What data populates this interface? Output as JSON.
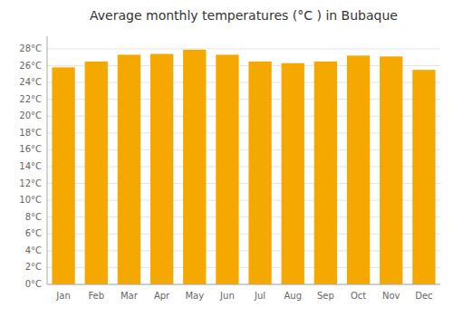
{
  "chart_data": {
    "type": "bar",
    "title": "Average monthly temperatures (°C ) in Bubaque",
    "categories": [
      "Jan",
      "Feb",
      "Mar",
      "Apr",
      "May",
      "Jun",
      "Jul",
      "Aug",
      "Sep",
      "Oct",
      "Nov",
      "Dec"
    ],
    "values": [
      25.8,
      26.5,
      27.3,
      27.4,
      27.9,
      27.3,
      26.5,
      26.3,
      26.5,
      27.2,
      27.1,
      25.5
    ],
    "color": "#F5A800",
    "ylim": [
      0,
      29.5
    ],
    "yticks": [
      {
        "value": 0,
        "label": "0°C"
      },
      {
        "value": 2,
        "label": "2°C"
      },
      {
        "value": 4,
        "label": "4°C"
      },
      {
        "value": 6,
        "label": "6°C"
      },
      {
        "value": 8,
        "label": "8°C"
      },
      {
        "value": 10,
        "label": "10°C"
      },
      {
        "value": 12,
        "label": "12°C"
      },
      {
        "value": 14,
        "label": "14°C"
      },
      {
        "value": 16,
        "label": "16°C"
      },
      {
        "value": 18,
        "label": "18°C"
      },
      {
        "value": 20,
        "label": "20°C"
      },
      {
        "value": 22,
        "label": "22°C"
      },
      {
        "value": 24,
        "label": "24°C"
      },
      {
        "value": 26,
        "label": "26°C"
      },
      {
        "value": 28,
        "label": "28°C"
      }
    ],
    "grid": true
  }
}
